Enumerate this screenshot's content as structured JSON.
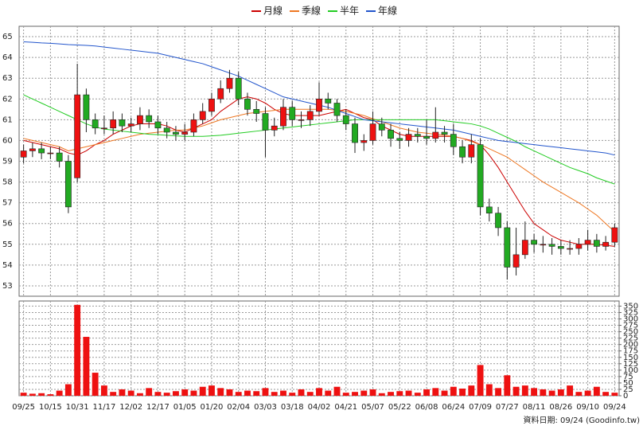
{
  "chart_data": {
    "type": "candlestick",
    "categories": [
      "09/25",
      null,
      null,
      "10/15",
      null,
      null,
      "10/31",
      null,
      null,
      "11/17",
      null,
      null,
      "12/02",
      null,
      null,
      "12/17",
      null,
      null,
      "01/05",
      null,
      null,
      "01/20",
      null,
      null,
      "02/04",
      null,
      null,
      "03/03",
      null,
      null,
      "03/18",
      null,
      null,
      "04/02",
      null,
      null,
      "04/21",
      null,
      null,
      "05/07",
      null,
      null,
      "05/22",
      null,
      null,
      "06/08",
      null,
      null,
      "06/24",
      null,
      null,
      "07/09",
      null,
      null,
      "07/27",
      null,
      null,
      "08/11",
      null,
      null,
      "08/26",
      null,
      null,
      "09/10",
      null,
      null,
      "09/24"
    ],
    "open": [
      59.2,
      59.5,
      59.6,
      59.4,
      59.4,
      59.0,
      58.2,
      62.2,
      61.0,
      60.6,
      60.6,
      61.0,
      60.7,
      60.8,
      61.2,
      60.9,
      60.6,
      60.4,
      60.3,
      60.4,
      61.0,
      61.4,
      62.0,
      62.5,
      63.0,
      62.0,
      61.5,
      61.3,
      60.5,
      60.7,
      61.6,
      61.0,
      61.0,
      61.4,
      62.0,
      61.8,
      61.2,
      60.8,
      59.9,
      60.0,
      60.8,
      60.5,
      60.1,
      60.0,
      60.3,
      60.2,
      60.1,
      60.4,
      60.3,
      59.7,
      59.2,
      59.8,
      56.8,
      56.5,
      55.8,
      53.9,
      54.5,
      55.2,
      55.0,
      55.0,
      54.9,
      54.8,
      54.8,
      55.0,
      55.2,
      54.9,
      55.1
    ],
    "high": [
      59.8,
      59.9,
      59.9,
      59.7,
      59.7,
      59.3,
      63.7,
      62.5,
      61.3,
      61.2,
      61.4,
      61.3,
      61.1,
      61.6,
      61.5,
      61.2,
      60.9,
      60.7,
      60.8,
      61.3,
      61.8,
      62.3,
      62.9,
      63.4,
      63.3,
      62.3,
      61.9,
      61.6,
      61.1,
      62.0,
      61.9,
      61.4,
      61.7,
      62.8,
      62.3,
      62.0,
      61.5,
      61.1,
      60.3,
      61.4,
      61.1,
      60.8,
      60.4,
      60.6,
      60.6,
      61.0,
      61.6,
      60.7,
      60.8,
      60.0,
      60.3,
      60.1,
      57.2,
      56.8,
      56.1,
      55.8,
      56.1,
      55.5,
      55.4,
      55.3,
      55.2,
      55.2,
      55.3,
      55.7,
      55.5,
      55.4,
      56.0
    ],
    "low": [
      58.9,
      59.2,
      59.1,
      59.1,
      58.7,
      56.5,
      58.0,
      60.4,
      60.3,
      60.3,
      60.3,
      60.4,
      60.4,
      60.5,
      60.6,
      60.3,
      60.1,
      60.0,
      60.0,
      60.2,
      60.8,
      61.2,
      61.8,
      62.3,
      61.7,
      61.2,
      60.9,
      59.2,
      60.2,
      60.5,
      60.7,
      60.6,
      60.7,
      61.2,
      61.5,
      60.9,
      60.5,
      59.4,
      59.5,
      59.8,
      60.2,
      59.7,
      59.6,
      59.7,
      59.9,
      59.8,
      59.9,
      59.9,
      59.3,
      58.9,
      58.9,
      56.4,
      56.1,
      55.4,
      53.3,
      53.5,
      54.3,
      54.6,
      54.6,
      54.5,
      54.5,
      54.5,
      54.5,
      54.7,
      54.6,
      54.7,
      54.9
    ],
    "close": [
      59.5,
      59.6,
      59.4,
      59.4,
      59.0,
      56.8,
      62.2,
      61.0,
      60.6,
      60.6,
      61.0,
      60.7,
      60.8,
      61.2,
      60.9,
      60.6,
      60.4,
      60.3,
      60.4,
      61.0,
      61.4,
      62.0,
      62.5,
      63.0,
      62.0,
      61.5,
      61.3,
      60.5,
      60.7,
      61.6,
      61.0,
      61.0,
      61.4,
      62.0,
      61.8,
      61.2,
      60.8,
      59.9,
      60.0,
      60.8,
      60.5,
      60.1,
      60.0,
      60.3,
      60.2,
      60.1,
      60.4,
      60.3,
      59.7,
      59.2,
      59.8,
      56.8,
      56.5,
      55.8,
      53.9,
      54.5,
      55.2,
      55.0,
      55.0,
      54.9,
      54.8,
      54.8,
      55.0,
      55.2,
      54.9,
      55.1,
      55.8
    ],
    "up_color": "#ee1111",
    "down_color": "#22aa22",
    "ylim": [
      52.5,
      65.5
    ],
    "yticks": [
      53,
      54,
      55,
      56,
      57,
      58,
      59,
      60,
      61,
      62,
      63,
      64,
      65
    ],
    "grid": true,
    "series": [
      {
        "name": "月線",
        "color": "#cc0000",
        "values": [
          60.0,
          59.9,
          59.8,
          59.7,
          59.6,
          59.4,
          59.3,
          59.5,
          59.8,
          60.0,
          60.3,
          60.5,
          60.7,
          60.8,
          60.8,
          60.8,
          60.7,
          60.5,
          60.4,
          60.6,
          60.8,
          61.0,
          61.4,
          61.7,
          62.0,
          62.1,
          62.0,
          61.8,
          61.5,
          61.3,
          61.2,
          61.2,
          61.2,
          61.2,
          61.3,
          61.4,
          61.5,
          61.3,
          61.1,
          61.0,
          60.7,
          60.5,
          60.3,
          60.2,
          60.2,
          60.2,
          60.2,
          60.2,
          60.2,
          60.1,
          60.0,
          59.8,
          59.3,
          58.7,
          58.0,
          57.3,
          56.6,
          56.0,
          55.7,
          55.4,
          55.2,
          55.1,
          55.0,
          55.0,
          55.0,
          54.95,
          54.9
        ]
      },
      {
        "name": "季線",
        "color": "#ee7722",
        "values": [
          60.1,
          60.0,
          59.9,
          59.8,
          59.7,
          59.5,
          59.6,
          59.7,
          59.8,
          59.9,
          60.0,
          60.1,
          60.2,
          60.3,
          60.35,
          60.4,
          60.45,
          60.5,
          60.5,
          60.6,
          60.7,
          60.85,
          61.0,
          61.1,
          61.2,
          61.3,
          61.35,
          61.4,
          61.45,
          61.5,
          61.5,
          61.5,
          61.5,
          61.5,
          61.5,
          61.45,
          61.4,
          61.3,
          61.2,
          61.05,
          60.9,
          60.75,
          60.6,
          60.5,
          60.4,
          60.35,
          60.3,
          60.25,
          60.2,
          60.1,
          59.95,
          59.8,
          59.6,
          59.4,
          59.2,
          58.9,
          58.6,
          58.3,
          58.0,
          57.75,
          57.5,
          57.25,
          57.0,
          56.7,
          56.4,
          56.0,
          55.6
        ]
      },
      {
        "name": "半年",
        "color": "#22cc22",
        "values": [
          62.2,
          62.0,
          61.8,
          61.6,
          61.4,
          61.2,
          61.0,
          60.8,
          60.65,
          60.55,
          60.5,
          60.45,
          60.4,
          60.35,
          60.3,
          60.28,
          60.25,
          60.22,
          60.2,
          60.2,
          60.2,
          60.22,
          60.25,
          60.3,
          60.35,
          60.4,
          60.45,
          60.5,
          60.55,
          60.6,
          60.65,
          60.7,
          60.75,
          60.8,
          60.85,
          60.9,
          60.95,
          61.0,
          61.0,
          61.0,
          61.0,
          61.0,
          61.0,
          61.0,
          61.0,
          61.0,
          61.0,
          60.95,
          60.9,
          60.85,
          60.8,
          60.7,
          60.55,
          60.35,
          60.15,
          59.95,
          59.7,
          59.5,
          59.3,
          59.1,
          58.9,
          58.7,
          58.55,
          58.4,
          58.2,
          58.05,
          57.9
        ]
      },
      {
        "name": "年線",
        "color": "#2255cc",
        "values": [
          64.75,
          64.73,
          64.7,
          64.68,
          64.65,
          64.62,
          64.6,
          64.58,
          64.55,
          64.5,
          64.45,
          64.4,
          64.35,
          64.3,
          64.25,
          64.2,
          64.1,
          64.0,
          63.9,
          63.8,
          63.7,
          63.55,
          63.4,
          63.25,
          63.1,
          62.9,
          62.7,
          62.5,
          62.3,
          62.1,
          62.0,
          61.9,
          61.8,
          61.7,
          61.6,
          61.45,
          61.3,
          61.15,
          61.0,
          60.95,
          60.9,
          60.85,
          60.8,
          60.75,
          60.7,
          60.65,
          60.6,
          60.55,
          60.5,
          60.4,
          60.3,
          60.2,
          60.1,
          60.0,
          59.95,
          59.9,
          59.85,
          59.8,
          59.75,
          59.7,
          59.65,
          59.6,
          59.55,
          59.5,
          59.45,
          59.4,
          59.3
        ]
      }
    ],
    "volume": {
      "color": "#ee1111",
      "ylim": [
        0,
        370
      ],
      "yticks": [
        0,
        25,
        50,
        75,
        100,
        125,
        150,
        175,
        200,
        225,
        250,
        275,
        300,
        325,
        350
      ],
      "values": [
        12,
        8,
        10,
        6,
        20,
        45,
        355,
        230,
        90,
        40,
        15,
        25,
        20,
        10,
        30,
        15,
        12,
        18,
        25,
        20,
        35,
        40,
        30,
        25,
        15,
        20,
        18,
        30,
        15,
        20,
        12,
        25,
        15,
        30,
        20,
        35,
        12,
        15,
        20,
        25,
        10,
        15,
        18,
        20,
        12,
        25,
        30,
        20,
        35,
        28,
        40,
        120,
        45,
        30,
        80,
        35,
        40,
        30,
        25,
        20,
        25,
        40,
        15,
        20,
        35,
        15,
        12
      ]
    },
    "footer": "資料日期: 09/24 (Goodinfo.tw)"
  }
}
